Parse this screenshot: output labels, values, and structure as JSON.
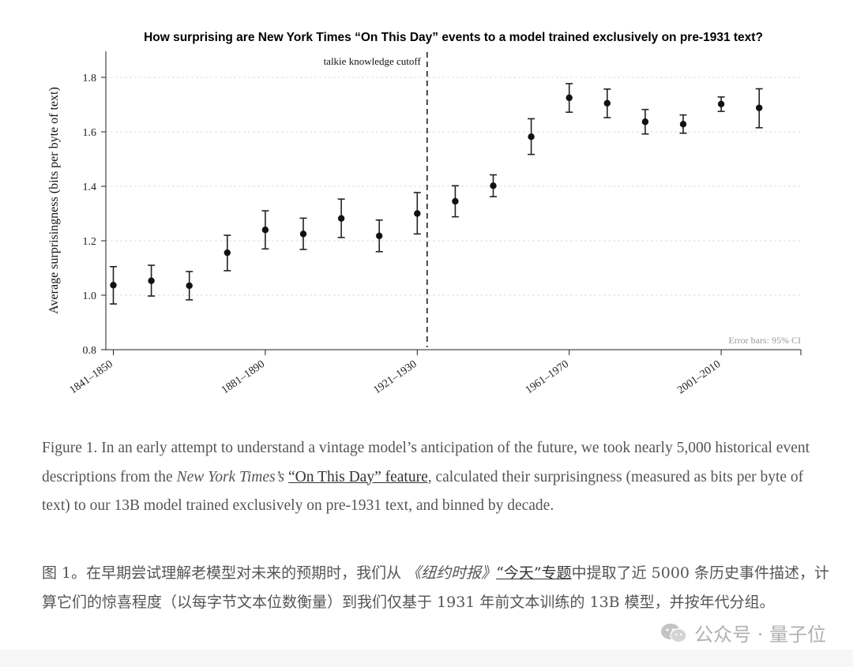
{
  "chart_data": {
    "type": "scatter",
    "title": "How surprising are New York Times “On This Day” events to a model trained exclusively on pre-1931 text?",
    "ylabel": "Average surprisingness (bits per byte of text)",
    "xlabel": "",
    "ylim": [
      0.8,
      1.9
    ],
    "yticks": [
      0.8,
      1.0,
      1.2,
      1.4,
      1.6,
      1.8
    ],
    "grid": "horizontal dashed",
    "x_tick_labels": [
      {
        "index": 0,
        "label": "1841–1850"
      },
      {
        "index": 4,
        "label": "1881–1890"
      },
      {
        "index": 8,
        "label": "1921–1930"
      },
      {
        "index": 12,
        "label": "1961–1970"
      },
      {
        "index": 16,
        "label": "2001–2010"
      }
    ],
    "cutoff": {
      "after_index": 8,
      "label": "talkie knowledge cutoff"
    },
    "note": "Error bars: 95% CI",
    "points": [
      {
        "y": 1.037,
        "lo": 0.968,
        "hi": 1.105
      },
      {
        "y": 1.053,
        "lo": 0.997,
        "hi": 1.11
      },
      {
        "y": 1.035,
        "lo": 0.983,
        "hi": 1.087
      },
      {
        "y": 1.156,
        "lo": 1.09,
        "hi": 1.22
      },
      {
        "y": 1.24,
        "lo": 1.17,
        "hi": 1.31
      },
      {
        "y": 1.225,
        "lo": 1.168,
        "hi": 1.283
      },
      {
        "y": 1.282,
        "lo": 1.212,
        "hi": 1.353
      },
      {
        "y": 1.218,
        "lo": 1.16,
        "hi": 1.276
      },
      {
        "y": 1.3,
        "lo": 1.225,
        "hi": 1.377
      },
      {
        "y": 1.345,
        "lo": 1.288,
        "hi": 1.402
      },
      {
        "y": 1.402,
        "lo": 1.362,
        "hi": 1.442
      },
      {
        "y": 1.582,
        "lo": 1.517,
        "hi": 1.648
      },
      {
        "y": 1.725,
        "lo": 1.672,
        "hi": 1.777
      },
      {
        "y": 1.705,
        "lo": 1.652,
        "hi": 1.757
      },
      {
        "y": 1.637,
        "lo": 1.592,
        "hi": 1.682
      },
      {
        "y": 1.628,
        "lo": 1.595,
        "hi": 1.662
      },
      {
        "y": 1.702,
        "lo": 1.675,
        "hi": 1.728
      },
      {
        "y": 1.688,
        "lo": 1.615,
        "hi": 1.758
      }
    ]
  },
  "caption_en": {
    "p1": "Figure 1. In an early attempt to understand a vintage model’s anticipation of the future, we took nearly 5,000 historical event descriptions from the ",
    "source_italic": "New York Times’s",
    "link": "“On This Day” feature",
    "p2": ", calculated their surprisingness (measured as bits per byte of text) to our 13B model trained exclusively on pre-1931 text, and binned by decade."
  },
  "caption_zh": {
    "p1": "图 1。在早期尝试理解老模型对未来的预期时，我们从 ",
    "source_italic": "《纽约时报》",
    "link": "“今天”专题",
    "p2": "中提取了近 5000 条历史事件描述，计算它们的惊喜程度（以每字节文本位数衡量）到我们仅基于 1931 年前文本训练的 13B 模型，并按年代分组。"
  },
  "watermark": {
    "text": "公众号 · 量子位",
    "icon": "wechat-icon"
  }
}
